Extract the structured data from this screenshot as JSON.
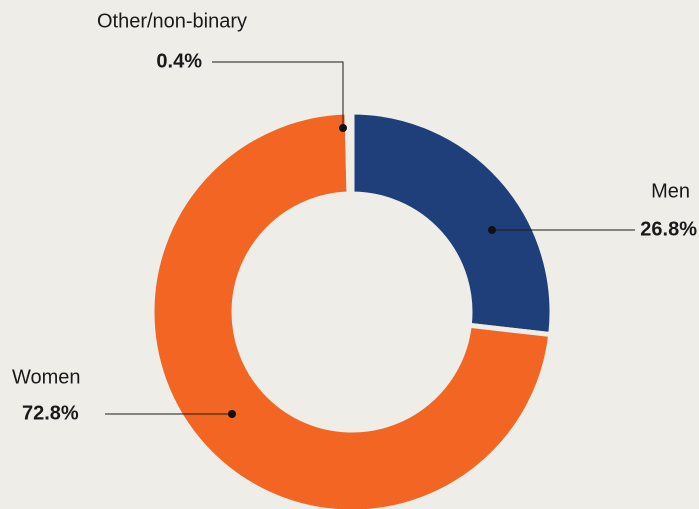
{
  "chart_data": {
    "type": "pie",
    "categories": [
      "Men",
      "Women",
      "Other/non-binary"
    ],
    "values": [
      26.8,
      72.8,
      0.4
    ],
    "value_labels": [
      "26.8%",
      "72.8%",
      "0.4%"
    ],
    "colors": [
      "#1e3f7a",
      "#f26522",
      "#f7b916"
    ]
  }
}
